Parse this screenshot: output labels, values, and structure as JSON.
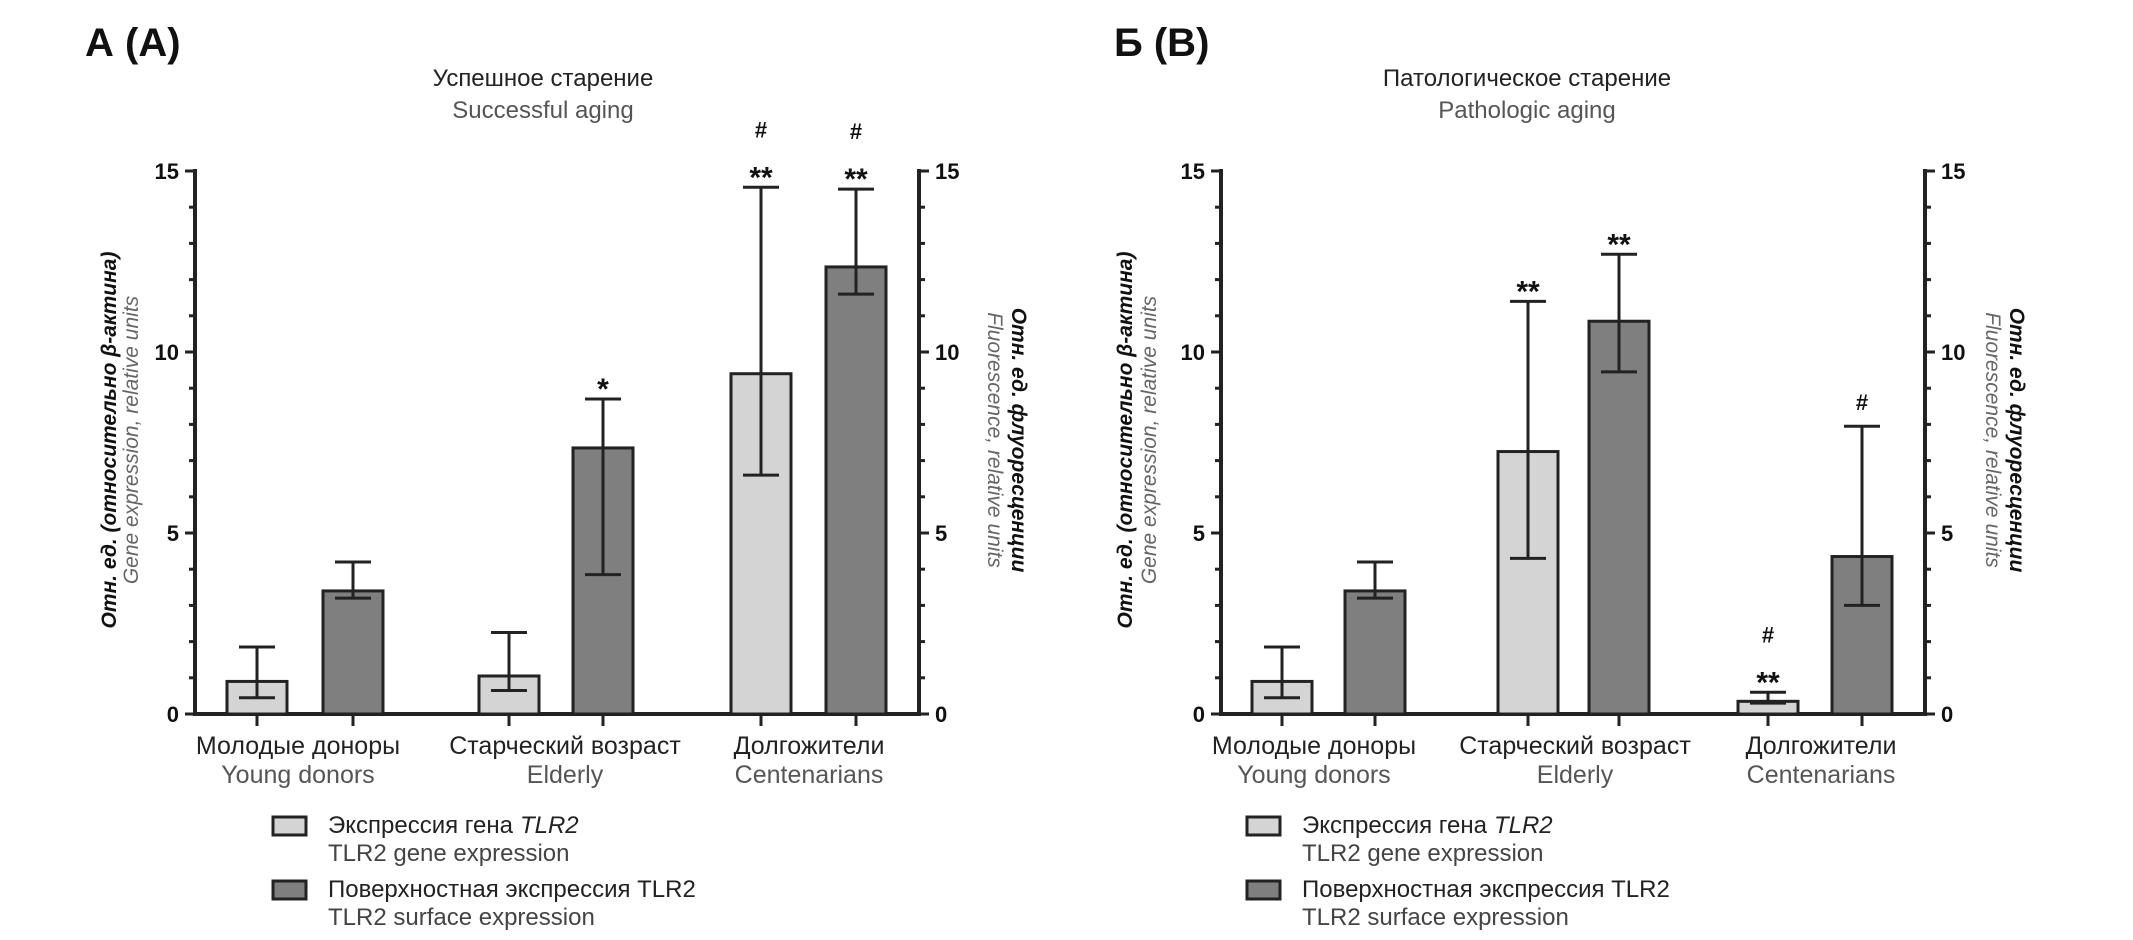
{
  "colors": {
    "gene": "#d4d4d4",
    "surface": "#7f7f7f",
    "stroke": "#222222"
  },
  "chart_data": [
    {
      "type": "bar",
      "panel_label": "А (A)",
      "title": "Успешное старение",
      "subtitle": "Successful aging",
      "categories": [
        {
          "ru": "Молодые доноры",
          "en": "Young donors"
        },
        {
          "ru": "Старческий возраст",
          "en": "Elderly"
        },
        {
          "ru": "Долгожители",
          "en": "Centenarians"
        }
      ],
      "ylabel_left": {
        "ru": "Отн. ед. (относительно β-актина)",
        "en": "Gene expression, relative units"
      },
      "ylabel_right": {
        "ru": "Отн. ед. флуоресценции",
        "en": "Fluorescence, relative units"
      },
      "ylim": [
        0,
        15
      ],
      "yticks": [
        "0",
        "5",
        "10",
        "15"
      ],
      "series": [
        {
          "name": "gene",
          "values": [
            0.9,
            1.05,
            9.4
          ],
          "err_low": [
            0.45,
            0.65,
            6.6
          ],
          "err_high": [
            1.85,
            2.25,
            14.55
          ],
          "marks": [
            [],
            [],
            [
              "**",
              "#"
            ]
          ]
        },
        {
          "name": "surface",
          "values": [
            3.4,
            7.35,
            12.35
          ],
          "err_low": [
            3.2,
            3.85,
            11.6
          ],
          "err_high": [
            4.2,
            8.7,
            14.5
          ],
          "marks": [
            [],
            [
              "*"
            ],
            [
              "**",
              "#"
            ]
          ]
        }
      ],
      "legend": [
        {
          "ru": "Экспрессия гена",
          "ru_italic": "TLR2",
          "en": "TLR2 gene expression"
        },
        {
          "ru": "Поверхностная экспрессия TLR2",
          "ru_italic": "",
          "en": "TLR2 surface expression"
        }
      ]
    },
    {
      "type": "bar",
      "panel_label": "Б (B)",
      "title": "Патологическое старение",
      "subtitle": "Pathologic aging",
      "categories": [
        {
          "ru": "Молодые доноры",
          "en": "Young donors"
        },
        {
          "ru": "Старческий возраст",
          "en": "Elderly"
        },
        {
          "ru": "Долгожители",
          "en": "Centenarians"
        }
      ],
      "ylabel_left": {
        "ru": "Отн. ед. (относительно β-актина)",
        "en": "Gene expression, relative units"
      },
      "ylabel_right": {
        "ru": "Отн. ед. флуоресценции",
        "en": "Fluorescence, relative units"
      },
      "ylim": [
        0,
        15
      ],
      "yticks": [
        "0",
        "5",
        "10",
        "15"
      ],
      "series": [
        {
          "name": "gene",
          "values": [
            0.9,
            7.25,
            0.35
          ],
          "err_low": [
            0.45,
            4.3,
            0.3
          ],
          "err_high": [
            1.85,
            11.4,
            0.6
          ],
          "marks": [
            [],
            [
              "**"
            ],
            [
              "**",
              "#"
            ]
          ]
        },
        {
          "name": "surface",
          "values": [
            3.4,
            10.85,
            4.35
          ],
          "err_low": [
            3.2,
            9.45,
            3.0
          ],
          "err_high": [
            4.2,
            12.7,
            7.95
          ],
          "marks": [
            [],
            [
              "**"
            ],
            [
              "#"
            ]
          ]
        }
      ],
      "legend": [
        {
          "ru": "Экспрессия гена",
          "ru_italic": "TLR2",
          "en": "TLR2 gene expression"
        },
        {
          "ru": "Поверхностная экспрессия TLR2",
          "ru_italic": "",
          "en": "TLR2 surface expression"
        }
      ]
    }
  ]
}
